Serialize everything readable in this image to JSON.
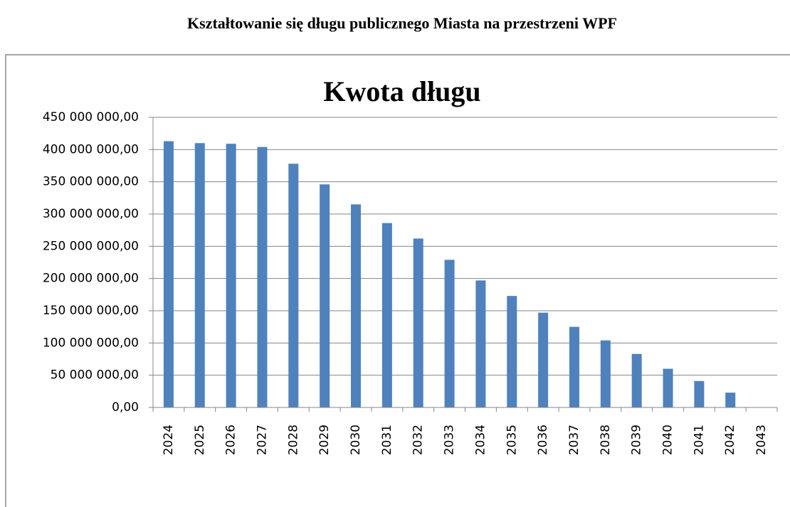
{
  "heading": "Kształtowanie się długu publicznego Miasta na przestrzeni WPF",
  "chart_data": {
    "type": "bar",
    "title": "Kwota długu",
    "categories": [
      "2024",
      "2025",
      "2026",
      "2027",
      "2028",
      "2029",
      "2030",
      "2031",
      "2032",
      "2033",
      "2034",
      "2035",
      "2036",
      "2037",
      "2038",
      "2039",
      "2040",
      "2041",
      "2042",
      "2043"
    ],
    "values": [
      413000000,
      410000000,
      409000000,
      404000000,
      378000000,
      346000000,
      315000000,
      286000000,
      262000000,
      229000000,
      197000000,
      173000000,
      147000000,
      125000000,
      104000000,
      83000000,
      60000000,
      41000000,
      23000000,
      0
    ],
    "color": "#4f81bd",
    "ylim": [
      0,
      450000000
    ],
    "yticks": [
      {
        "value": 0,
        "label": "0,00"
      },
      {
        "value": 50000000,
        "label": "50 000 000,00"
      },
      {
        "value": 100000000,
        "label": "100 000 000,00"
      },
      {
        "value": 150000000,
        "label": "150 000 000,00"
      },
      {
        "value": 200000000,
        "label": "200 000 000,00"
      },
      {
        "value": 250000000,
        "label": "250 000 000,00"
      },
      {
        "value": 300000000,
        "label": "300 000 000,00"
      },
      {
        "value": 350000000,
        "label": "350 000 000,00"
      },
      {
        "value": 400000000,
        "label": "400 000 000,00"
      },
      {
        "value": 450000000,
        "label": "450 000 000,00"
      }
    ],
    "grid": true
  }
}
